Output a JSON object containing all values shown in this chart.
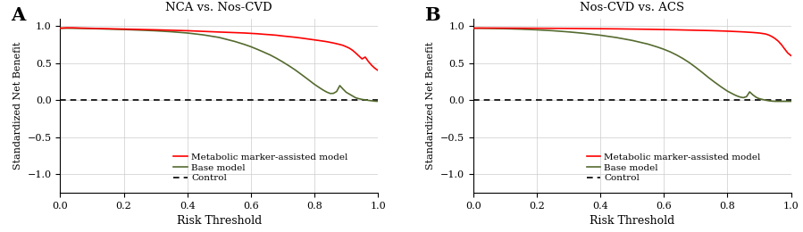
{
  "panel_A": {
    "title": "NCA vs. Nos-CVD",
    "panel_label": "A",
    "red_line": {
      "color": "#FF0000",
      "points_x": [
        0.0,
        0.02,
        0.04,
        0.06,
        0.08,
        0.1,
        0.15,
        0.2,
        0.25,
        0.3,
        0.35,
        0.4,
        0.45,
        0.5,
        0.55,
        0.58,
        0.6,
        0.62,
        0.64,
        0.66,
        0.68,
        0.7,
        0.72,
        0.74,
        0.76,
        0.78,
        0.8,
        0.82,
        0.84,
        0.86,
        0.88,
        0.89,
        0.9,
        0.91,
        0.92,
        0.93,
        0.94,
        0.95,
        0.96,
        0.97,
        0.98,
        0.99,
        1.0
      ],
      "points_y": [
        0.97,
        0.975,
        0.975,
        0.972,
        0.97,
        0.968,
        0.963,
        0.958,
        0.953,
        0.948,
        0.942,
        0.936,
        0.927,
        0.918,
        0.91,
        0.905,
        0.9,
        0.895,
        0.888,
        0.882,
        0.875,
        0.865,
        0.856,
        0.847,
        0.836,
        0.824,
        0.812,
        0.8,
        0.787,
        0.77,
        0.75,
        0.738,
        0.72,
        0.7,
        0.672,
        0.635,
        0.595,
        0.555,
        0.58,
        0.52,
        0.47,
        0.43,
        0.4
      ]
    },
    "olive_line": {
      "color": "#556B2F",
      "points_x": [
        0.0,
        0.02,
        0.04,
        0.06,
        0.08,
        0.1,
        0.15,
        0.2,
        0.25,
        0.3,
        0.35,
        0.4,
        0.45,
        0.5,
        0.55,
        0.58,
        0.6,
        0.62,
        0.64,
        0.66,
        0.68,
        0.7,
        0.72,
        0.74,
        0.76,
        0.78,
        0.8,
        0.82,
        0.83,
        0.84,
        0.85,
        0.86,
        0.87,
        0.88,
        0.89,
        0.9,
        0.91,
        0.92,
        0.93,
        0.94,
        0.95,
        0.96,
        0.97,
        0.98,
        0.99,
        1.0
      ],
      "points_y": [
        0.97,
        0.97,
        0.969,
        0.968,
        0.966,
        0.964,
        0.958,
        0.952,
        0.944,
        0.935,
        0.922,
        0.905,
        0.88,
        0.845,
        0.79,
        0.75,
        0.72,
        0.685,
        0.648,
        0.61,
        0.565,
        0.515,
        0.462,
        0.405,
        0.342,
        0.278,
        0.212,
        0.155,
        0.128,
        0.105,
        0.088,
        0.09,
        0.115,
        0.195,
        0.148,
        0.105,
        0.08,
        0.055,
        0.03,
        0.018,
        0.008,
        0.002,
        -0.005,
        -0.01,
        -0.015,
        -0.018
      ]
    }
  },
  "panel_B": {
    "title": "Nos-CVD vs. ACS",
    "panel_label": "B",
    "red_line": {
      "color": "#FF0000",
      "points_x": [
        0.0,
        0.02,
        0.05,
        0.1,
        0.15,
        0.2,
        0.25,
        0.3,
        0.35,
        0.4,
        0.45,
        0.5,
        0.55,
        0.6,
        0.65,
        0.7,
        0.75,
        0.8,
        0.85,
        0.88,
        0.9,
        0.92,
        0.93,
        0.94,
        0.95,
        0.96,
        0.97,
        0.98,
        0.99,
        1.0
      ],
      "points_y": [
        0.97,
        0.972,
        0.972,
        0.971,
        0.97,
        0.969,
        0.968,
        0.967,
        0.965,
        0.963,
        0.961,
        0.958,
        0.955,
        0.951,
        0.947,
        0.942,
        0.937,
        0.93,
        0.92,
        0.912,
        0.905,
        0.892,
        0.878,
        0.857,
        0.83,
        0.795,
        0.748,
        0.69,
        0.635,
        0.6
      ]
    },
    "olive_line": {
      "color": "#556B2F",
      "points_x": [
        0.0,
        0.02,
        0.05,
        0.1,
        0.15,
        0.2,
        0.25,
        0.3,
        0.35,
        0.4,
        0.45,
        0.5,
        0.55,
        0.58,
        0.6,
        0.62,
        0.64,
        0.66,
        0.68,
        0.7,
        0.72,
        0.74,
        0.76,
        0.78,
        0.8,
        0.82,
        0.83,
        0.84,
        0.85,
        0.86,
        0.87,
        0.88,
        0.89,
        0.9,
        0.91,
        0.92,
        0.93,
        0.94,
        0.95,
        0.96,
        0.97,
        0.98,
        0.99,
        1.0
      ],
      "points_y": [
        0.97,
        0.969,
        0.967,
        0.963,
        0.957,
        0.948,
        0.936,
        0.92,
        0.9,
        0.875,
        0.844,
        0.805,
        0.755,
        0.715,
        0.685,
        0.65,
        0.608,
        0.56,
        0.505,
        0.442,
        0.375,
        0.305,
        0.24,
        0.178,
        0.12,
        0.075,
        0.055,
        0.04,
        0.032,
        0.045,
        0.11,
        0.07,
        0.038,
        0.018,
        0.008,
        -0.002,
        -0.01,
        -0.015,
        -0.018,
        -0.018,
        -0.018,
        -0.018,
        -0.018,
        -0.018
      ]
    }
  },
  "control_line": {
    "y": 0.0,
    "color": "#000000",
    "description": "Control"
  },
  "ylim": [
    -1.25,
    1.1
  ],
  "xlim": [
    0.0,
    1.0
  ],
  "yticks": [
    -1.0,
    -0.5,
    0.0,
    0.5,
    1.0
  ],
  "xticks": [
    0.0,
    0.2,
    0.4,
    0.6,
    0.8,
    1.0
  ],
  "xlabel": "Risk Threshold",
  "ylabel": "Standardized Net Benefit",
  "legend_labels": [
    "Metabolic marker-assisted model",
    "Base model",
    "Control"
  ],
  "legend_colors": [
    "#FF0000",
    "#556B2F",
    "#000000"
  ],
  "legend_styles": [
    "solid",
    "solid",
    "dashed"
  ],
  "background_color": "#FFFFFF",
  "grid_color": "#CCCCCC",
  "title_fontsize": 9.5,
  "axis_fontsize": 8,
  "legend_fontsize": 7.5,
  "linewidth": 1.2
}
